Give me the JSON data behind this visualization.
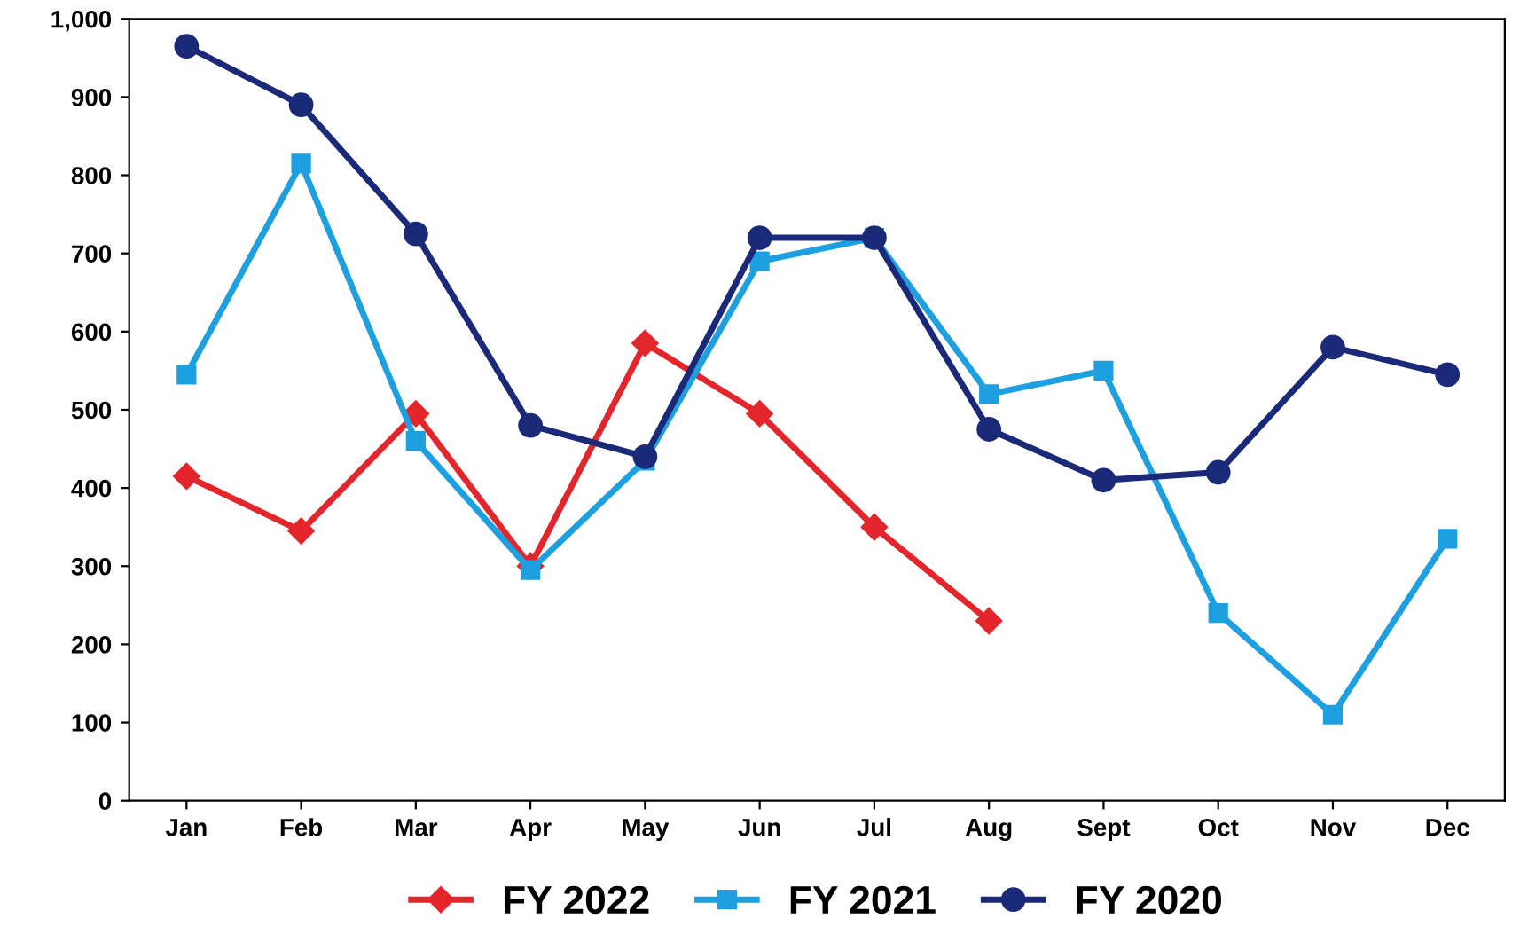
{
  "chart_data": {
    "type": "line",
    "categories": [
      "Jan",
      "Feb",
      "Mar",
      "Apr",
      "May",
      "Jun",
      "Jul",
      "Aug",
      "Sept",
      "Oct",
      "Nov",
      "Dec"
    ],
    "series": [
      {
        "name": "FY 2022",
        "color": "#e3262b",
        "marker": "diamond",
        "values": [
          415,
          345,
          495,
          300,
          585,
          495,
          350,
          230,
          null,
          null,
          null,
          null
        ]
      },
      {
        "name": "FY 2021",
        "color": "#1e9fe0",
        "marker": "square",
        "values": [
          545,
          815,
          460,
          295,
          435,
          690,
          720,
          520,
          550,
          240,
          110,
          335
        ]
      },
      {
        "name": "FY 2020",
        "color": "#1b2a78",
        "marker": "circle",
        "values": [
          965,
          890,
          725,
          480,
          440,
          720,
          720,
          475,
          410,
          420,
          580,
          545
        ]
      }
    ],
    "ylim": [
      0,
      1000
    ],
    "yticks": [
      0,
      100,
      200,
      300,
      400,
      500,
      600,
      700,
      800,
      900,
      {
        "value": 1000,
        "label": "1,000"
      }
    ],
    "grid": false,
    "legend": "bottom"
  }
}
